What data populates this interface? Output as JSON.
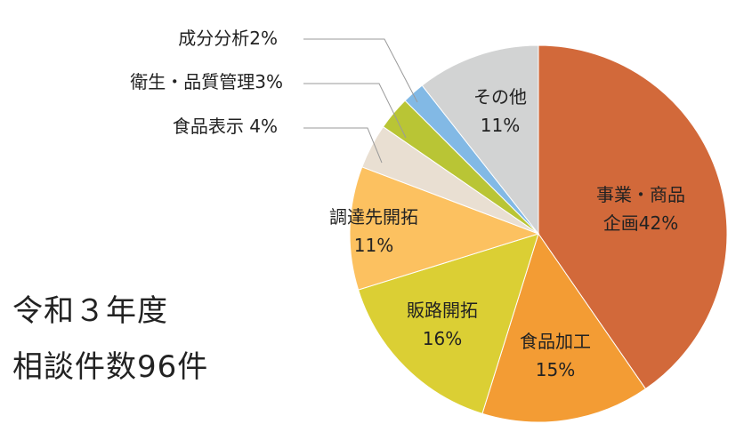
{
  "title_lines": [
    "令和３年度",
    "相談件数96件"
  ],
  "chart_data": {
    "type": "pie",
    "slices": [
      {
        "label": "事業・商品企画",
        "value": 42,
        "text": [
          "事業・商品",
          "企画42%"
        ],
        "color": "#d2693a"
      },
      {
        "label": "食品加工",
        "value": 15,
        "text": [
          "食品加工",
          "15%"
        ],
        "color": "#f39c34"
      },
      {
        "label": "販路開拓",
        "value": 16,
        "text": [
          "販路開拓",
          "16%"
        ],
        "color": "#dbcf34"
      },
      {
        "label": "調達先開拓",
        "value": 11,
        "text": [
          "調達先開拓",
          "11%"
        ],
        "color": "#fcc160"
      },
      {
        "label": "食品表示",
        "value": 4,
        "text": [
          "食品表示 4%"
        ],
        "color": "#e9dfd2"
      },
      {
        "label": "衛生・品質管理",
        "value": 3,
        "text": [
          "衛生・品質管理3%"
        ],
        "color": "#b9c535"
      },
      {
        "label": "成分分析",
        "value": 2,
        "text": [
          "成分分析2%"
        ],
        "color": "#82b9e5"
      },
      {
        "label": "その他",
        "value": 11,
        "text": [
          "その他",
          "11%"
        ],
        "color": "#d2d3d3"
      }
    ]
  }
}
